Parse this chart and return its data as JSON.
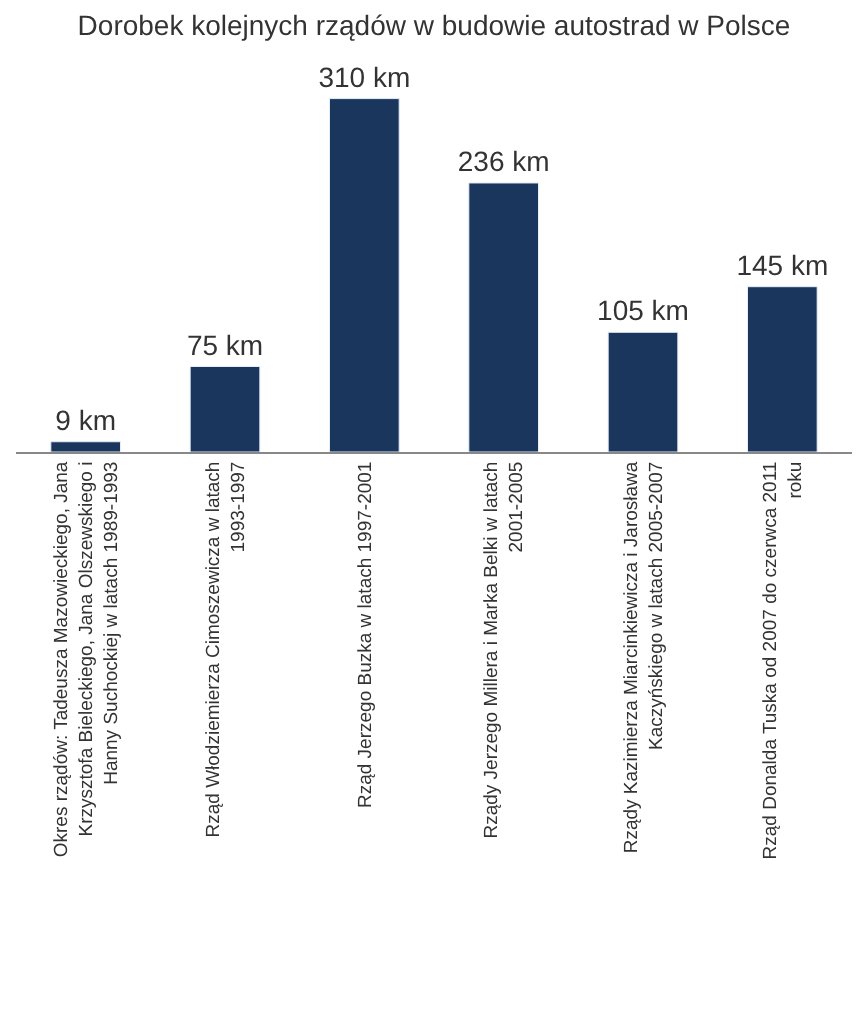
{
  "chart_data": {
    "type": "bar",
    "title": "Dorobek kolejnych rządów w budowie autostrad w Polsce",
    "categories": [
      "Okres rządów: Tadeusza Mazowieckiego, Jana\nKrzysztofa Bieleckiego, Jana Olszewskiego i\nHanny Suchockiej w latach 1989-1993",
      "Rząd Włodziemierza Cimoszewicza w latach\n1993-1997",
      "Rząd Jerzego Buzka w latach 1997-2001",
      "Rządy Jerzego Millera i Marka Belki w latach\n2001-2005",
      "Rządy Kazimierza Miarcinkiewicza i Jarosława\nKaczyńskiego w latach 2005-2007",
      "Rząd Donalda Tuska od 2007 do czerwca 2011\nroku"
    ],
    "values": [
      9,
      75,
      310,
      236,
      105,
      145
    ],
    "value_labels": [
      "9 km",
      "75 km",
      "310 km",
      "236 km",
      "105 km",
      "145 km"
    ],
    "color": "#1b365d",
    "legend": false,
    "tick_labels": "x"
  }
}
